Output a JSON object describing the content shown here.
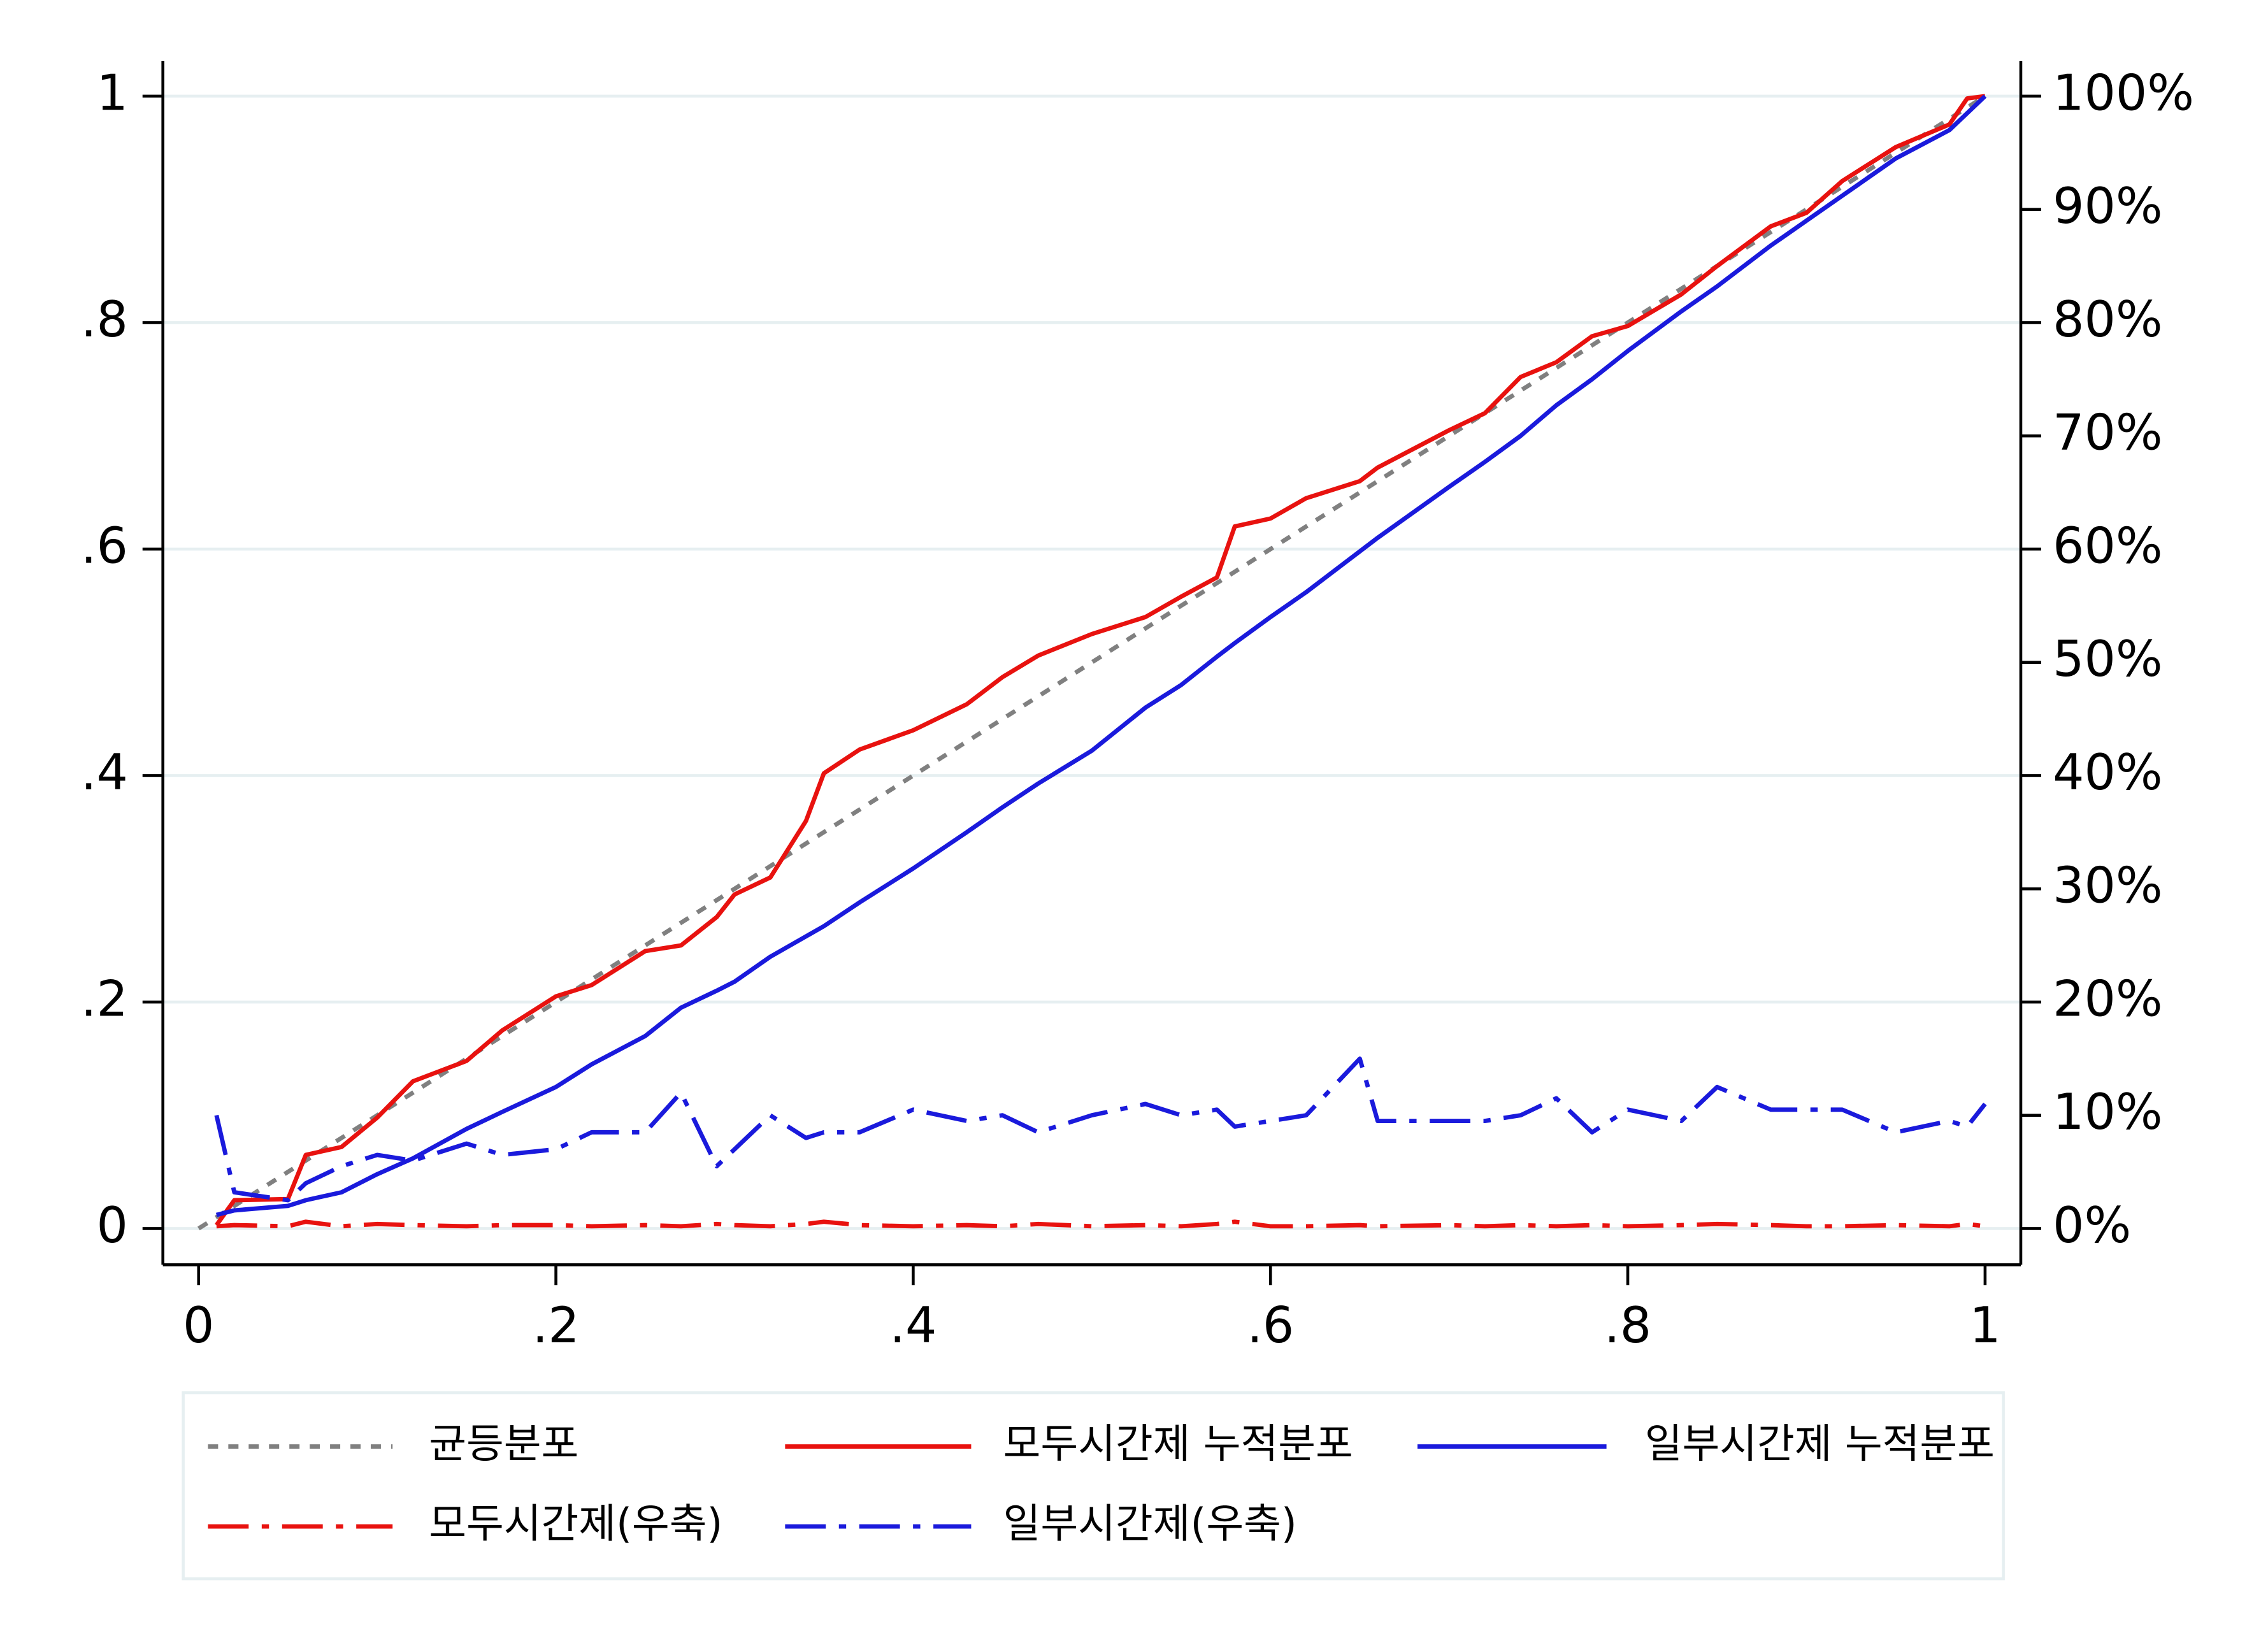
{
  "chart_data": {
    "type": "line",
    "x": [
      0,
      0.01,
      0.02,
      0.05,
      0.06,
      0.08,
      0.1,
      0.12,
      0.15,
      0.17,
      0.2,
      0.22,
      0.25,
      0.27,
      0.29,
      0.3,
      0.32,
      0.34,
      0.35,
      0.37,
      0.4,
      0.43,
      0.45,
      0.47,
      0.5,
      0.53,
      0.55,
      0.57,
      0.58,
      0.6,
      0.62,
      0.65,
      0.66,
      0.7,
      0.72,
      0.74,
      0.76,
      0.78,
      0.8,
      0.83,
      0.85,
      0.88,
      0.9,
      0.92,
      0.95,
      0.98,
      0.99,
      1
    ],
    "series": [
      {
        "name": "균등분포",
        "color": "#808080",
        "style": "dash",
        "values": [
          0,
          0.01,
          0.02,
          0.05,
          0.06,
          0.08,
          0.1,
          0.12,
          0.15,
          0.17,
          0.2,
          0.22,
          0.25,
          0.27,
          0.29,
          0.3,
          0.32,
          0.34,
          0.35,
          0.37,
          0.4,
          0.43,
          0.45,
          0.47,
          0.5,
          0.53,
          0.55,
          0.57,
          0.58,
          0.6,
          0.62,
          0.65,
          0.66,
          0.7,
          0.72,
          0.74,
          0.76,
          0.78,
          0.8,
          0.83,
          0.85,
          0.88,
          0.9,
          0.92,
          0.95,
          0.98,
          0.99,
          1
        ]
      },
      {
        "name": "모두시간제 누적분포",
        "color": "#e8120f",
        "style": "solid",
        "values": [
          null,
          0.003,
          0.025,
          0.026,
          0.065,
          0.072,
          0.098,
          0.13,
          0.148,
          0.175,
          0.205,
          0.215,
          0.245,
          0.25,
          0.275,
          0.295,
          0.31,
          0.36,
          0.402,
          0.423,
          0.44,
          0.463,
          0.487,
          0.506,
          0.525,
          0.54,
          0.558,
          0.575,
          0.62,
          0.627,
          0.645,
          0.66,
          0.672,
          0.705,
          0.72,
          0.752,
          0.765,
          0.788,
          0.797,
          0.825,
          0.85,
          0.885,
          0.897,
          0.925,
          0.955,
          0.975,
          0.998,
          1
        ]
      },
      {
        "name": "일부시간제 누적분포",
        "color": "#1a1adc",
        "style": "solid",
        "values": [
          null,
          0.012,
          0.016,
          0.02,
          0.025,
          0.032,
          0.048,
          0.062,
          0.088,
          0.103,
          0.125,
          0.145,
          0.17,
          0.195,
          0.21,
          0.218,
          0.24,
          0.258,
          0.267,
          0.288,
          0.318,
          0.35,
          0.372,
          0.393,
          0.422,
          0.46,
          0.48,
          0.505,
          0.517,
          0.54,
          0.562,
          0.598,
          0.61,
          0.655,
          0.677,
          0.7,
          0.727,
          0.75,
          0.775,
          0.81,
          0.832,
          0.868,
          0.89,
          0.912,
          0.945,
          0.97,
          0.985,
          1
        ]
      },
      {
        "name": "모두시간제(우축)",
        "color": "#e8120f",
        "style": "dashdot",
        "axis": "y2",
        "values": [
          null,
          0.2,
          0.3,
          0.2,
          0.6,
          0.2,
          0.4,
          0.3,
          0.2,
          0.3,
          0.3,
          0.2,
          0.3,
          0.2,
          0.4,
          0.3,
          0.2,
          0.4,
          0.6,
          0.3,
          0.2,
          0.3,
          0.2,
          0.4,
          0.2,
          0.3,
          0.2,
          0.4,
          0.6,
          0.2,
          0.2,
          0.3,
          0.2,
          0.3,
          0.2,
          0.3,
          0.2,
          0.3,
          0.2,
          0.3,
          0.4,
          0.3,
          0.2,
          0.2,
          0.3,
          0.2,
          0.4,
          0.2
        ]
      },
      {
        "name": "일부시간제(우축)",
        "color": "#1a1adc",
        "style": "dashdot",
        "axis": "y2",
        "values": [
          null,
          10,
          3.2,
          2.5,
          4,
          5.5,
          6.5,
          6,
          7.5,
          6.5,
          7,
          8.5,
          8.5,
          12,
          5.5,
          7,
          10,
          8,
          8.5,
          8.5,
          10.5,
          9.5,
          10,
          8.5,
          10,
          11,
          10,
          10.5,
          9,
          9.5,
          10,
          15,
          9.5,
          9.5,
          9.5,
          10,
          11.5,
          8.5,
          10.5,
          9.5,
          12.5,
          10.5,
          10.5,
          10.5,
          8.5,
          9.5,
          9,
          11
        ]
      }
    ],
    "xlim": [
      -0.02,
      1.02
    ],
    "ylim": [
      -0.032,
      1.031
    ],
    "y2lim": [
      -3.2,
      103.1
    ],
    "xticks": [
      0,
      {
        "value": 0.2,
        "label": ".2"
      },
      {
        "value": 0.4,
        "label": ".4"
      },
      {
        "value": 0.6,
        "label": ".6"
      },
      {
        "value": 0.8,
        "label": ".8"
      },
      1
    ],
    "yticks": [
      0,
      {
        "value": 0.2,
        "label": ".2"
      },
      {
        "value": 0.4,
        "label": ".4"
      },
      {
        "value": 0.6,
        "label": ".6"
      },
      {
        "value": 0.8,
        "label": ".8"
      },
      1
    ],
    "y2ticks": [
      {
        "value": 0,
        "label": "0%"
      },
      {
        "value": 10,
        "label": "10%"
      },
      {
        "value": 20,
        "label": "20%"
      },
      {
        "value": 30,
        "label": "30%"
      },
      {
        "value": 40,
        "label": "40%"
      },
      {
        "value": 50,
        "label": "50%"
      },
      {
        "value": 60,
        "label": "60%"
      },
      {
        "value": 70,
        "label": "70%"
      },
      {
        "value": 80,
        "label": "80%"
      },
      {
        "value": 90,
        "label": "90%"
      },
      {
        "value": 100,
        "label": "100%"
      }
    ],
    "grid": true,
    "legend": "bottom"
  }
}
